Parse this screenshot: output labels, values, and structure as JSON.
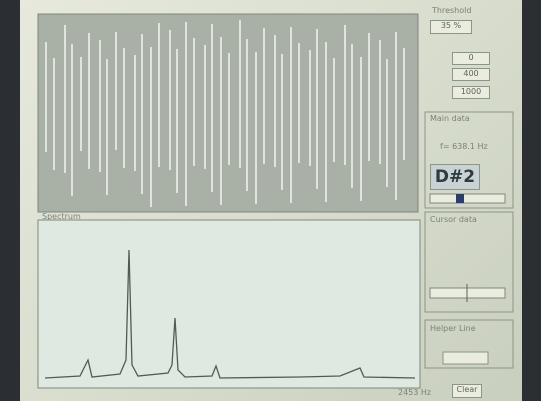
{
  "threshold": {
    "label": "Threshold",
    "value": "35 %"
  },
  "range_buttons": [
    "0",
    "400",
    "1000"
  ],
  "main_data": {
    "title": "Main data",
    "frequency": "f= 638.1 Hz",
    "note": "D#2"
  },
  "cursor_data": {
    "title": "Cursor data"
  },
  "helper_line": {
    "title": "Helper Line"
  },
  "spectrum": {
    "title": "Spectrum",
    "frequency": "2453 Hz"
  },
  "clear_button": "Clear"
}
